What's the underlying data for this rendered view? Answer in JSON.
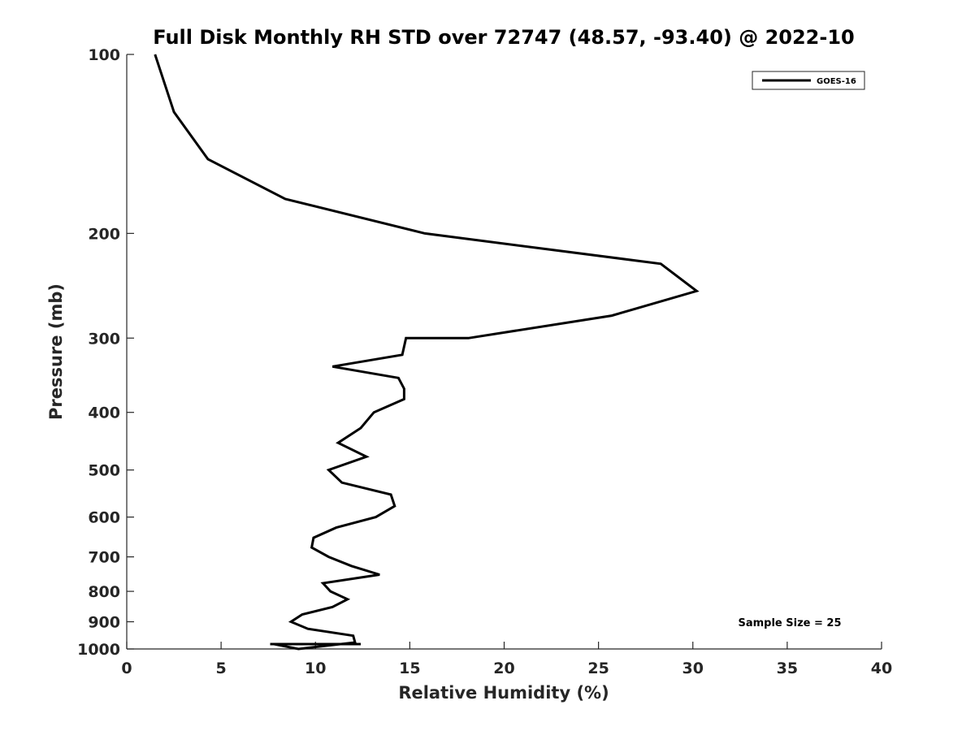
{
  "chart_data": {
    "type": "line",
    "title": "Full Disk Monthly RH STD over 72747 (48.57, -93.40) @ 2022-10",
    "xlabel": "Relative Humidity (%)",
    "ylabel": "Pressure (mb)",
    "xlim": [
      0,
      40
    ],
    "ylim": [
      100,
      1000
    ],
    "y_scale": "log",
    "y_reversed": true,
    "x_ticks": [
      "0",
      "5",
      "10",
      "15",
      "20",
      "25",
      "30",
      "35",
      "40"
    ],
    "y_ticks": [
      "100",
      "200",
      "300",
      "400",
      "500",
      "600",
      "700",
      "800",
      "900",
      "1000"
    ],
    "grid": false,
    "legend": {
      "position": "top-right",
      "entries": [
        "GOES-16"
      ]
    },
    "annotation": "Sample Size = 25",
    "series": [
      {
        "name": "GOES-16",
        "color": "#000000",
        "x": [
          1.5,
          2.5,
          4.3,
          8.4,
          15.8,
          28.3,
          30.2,
          25.7,
          18.1,
          14.8,
          14.6,
          10.9,
          14.4,
          14.7,
          14.7,
          13.1,
          12.4,
          11.2,
          12.7,
          10.7,
          11.4,
          14.0,
          14.2,
          13.2,
          11.1,
          9.9,
          9.8,
          10.7,
          11.9,
          13.4,
          10.4,
          10.8,
          11.7,
          10.9,
          9.3,
          8.7,
          9.6,
          12.0,
          12.1,
          9.1,
          7.8,
          8.1,
          12.4,
          7.6
        ],
        "y": [
          100,
          125,
          150,
          175,
          200,
          225,
          250,
          275,
          300,
          300,
          320,
          335,
          350,
          365,
          380,
          400,
          425,
          450,
          475,
          500,
          525,
          550,
          575,
          600,
          625,
          650,
          675,
          700,
          725,
          750,
          775,
          800,
          825,
          850,
          875,
          900,
          925,
          950,
          975,
          1000,
          1025,
          1050,
          1075,
          1100
        ]
      }
    ]
  }
}
